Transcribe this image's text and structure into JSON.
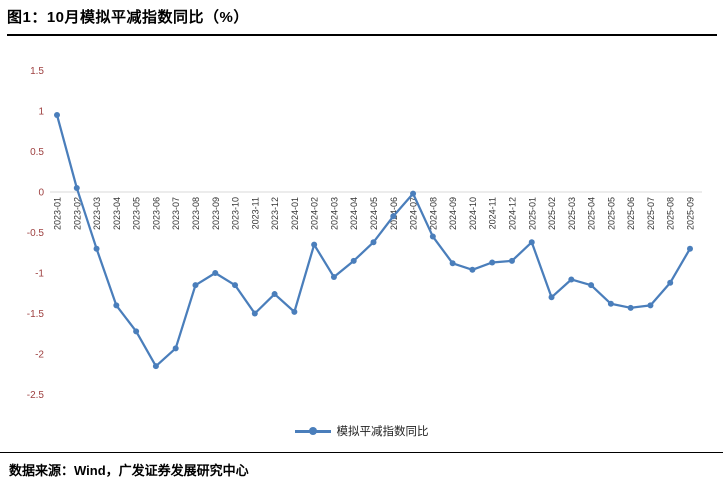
{
  "figure": {
    "title": "图1：10月模拟平减指数同比（%）",
    "legend": "模拟平减指数同比",
    "source": "数据来源：Wind，广发证券发展研究中心"
  },
  "chart_data": {
    "type": "line",
    "title": "图1：10月模拟平减指数同比（%）",
    "categories": [
      "2023-01",
      "2023-02",
      "2023-03",
      "2023-04",
      "2023-05",
      "2023-06",
      "2023-07",
      "2023-08",
      "2023-09",
      "2023-10",
      "2023-11",
      "2023-12",
      "2024-01",
      "2024-02",
      "2024-03",
      "2024-04",
      "2024-05",
      "2024-06",
      "2024-07",
      "2024-08",
      "2024-09",
      "2024-10",
      "2024-11",
      "2024-12",
      "2025-01",
      "2025-02",
      "2025-03",
      "2025-04",
      "2025-05",
      "2025-06",
      "2025-07",
      "2025-08",
      "2025-09"
    ],
    "series": [
      {
        "name": "模拟平减指数同比",
        "values": [
          0.95,
          0.05,
          -0.7,
          -1.4,
          -1.72,
          -2.15,
          -1.93,
          -1.15,
          -1.0,
          -1.15,
          -1.5,
          -1.26,
          -1.48,
          -0.65,
          -1.05,
          -0.85,
          -0.62,
          -0.3,
          -0.02,
          -0.55,
          -0.88,
          -0.96,
          -0.87,
          -0.85,
          -0.62,
          -1.3,
          -1.08,
          -1.15,
          -1.38,
          -1.43,
          -1.4,
          -1.12,
          -0.7
        ]
      }
    ],
    "ylim": [
      -2.5,
      1.5
    ],
    "yticks": [
      "1.5",
      "1",
      "0.5",
      "0",
      "-0.5",
      "-1",
      "-1.5",
      "-2",
      "-2.5"
    ],
    "ytick_color": "#9e4040",
    "xtick_color": "#333333",
    "line_color": "#4a7ebb",
    "zero_gridline_color": "#d9d9d9",
    "grid": "zero-line-only",
    "legend_position": "bottom-center",
    "x_label_rotation": -90
  }
}
